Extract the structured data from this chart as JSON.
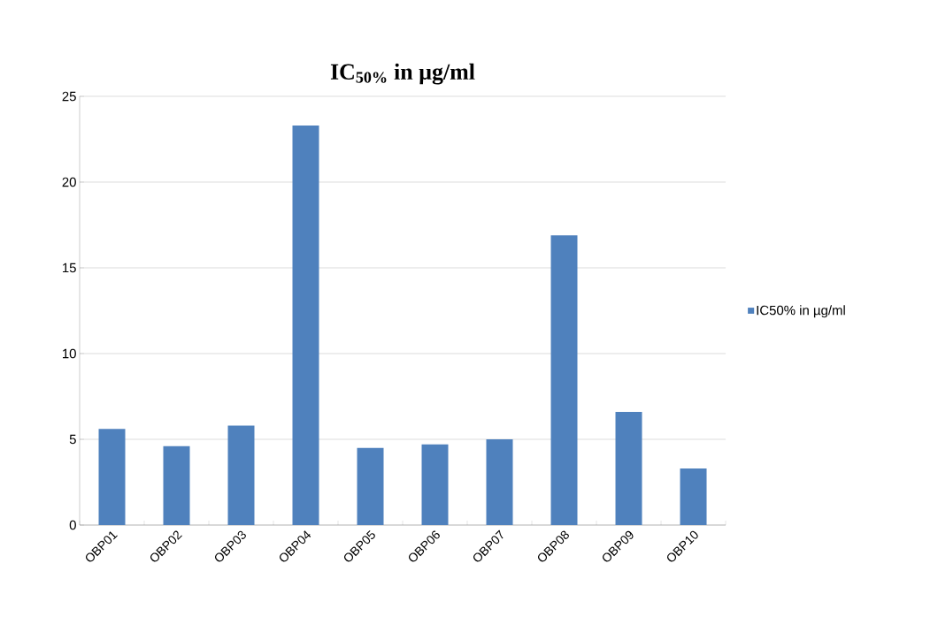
{
  "chart_data": {
    "type": "bar",
    "title": "IC$_{50%}$ in µg/ml",
    "categories": [
      "OBP01",
      "OBP02",
      "OBP03",
      "OBP04",
      "OBP05",
      "OBP06",
      "OBP07",
      "OBP08",
      "OBP09",
      "OBP10"
    ],
    "series": [
      {
        "name": "IC50% in µg/ml",
        "color": "#4f81bd",
        "values": [
          5.6,
          4.6,
          5.8,
          23.3,
          4.5,
          4.7,
          5.0,
          16.9,
          6.6,
          3.3
        ]
      }
    ],
    "ylim": [
      0,
      25
    ],
    "yticks": [
      0,
      5,
      10,
      15,
      20,
      25
    ],
    "grid": "y",
    "legend": "right"
  }
}
